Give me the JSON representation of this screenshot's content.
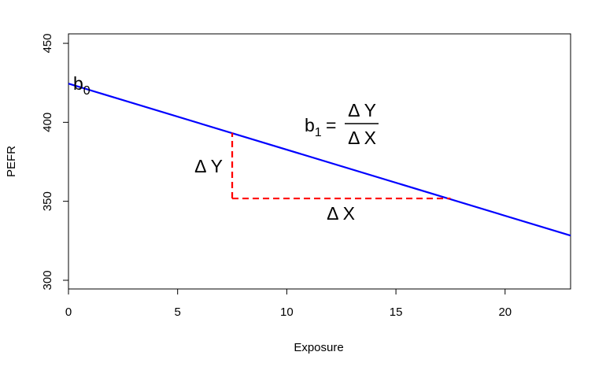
{
  "chart_data": {
    "type": "line",
    "xlabel": "Exposure",
    "ylabel": "PEFR",
    "xlim": [
      0,
      23
    ],
    "ylim": [
      294.5,
      456
    ],
    "x_ticks": [
      0,
      5,
      10,
      15,
      20
    ],
    "y_ticks": [
      300,
      350,
      400,
      450
    ],
    "grid": false,
    "legend": "none",
    "series": [
      {
        "x": [
          0,
          23
        ],
        "y": [
          424.5,
          328.3
        ],
        "color": "#0000ff"
      }
    ],
    "slope_guides": {
      "color": "#ff0000",
      "style": "dashed",
      "vertical": {
        "x": 7.5,
        "y": [
          351.8,
          393.4
        ]
      },
      "horizontal": {
        "y": 351.8,
        "x": [
          7.5,
          17.5
        ]
      }
    },
    "annotations": {
      "intercept": {
        "base": "b",
        "sub": "0"
      },
      "slope": {
        "base": "b",
        "sub": "1",
        "equals": "=",
        "numerator": "Δ Y",
        "denominator": "Δ X"
      },
      "delta_y": "Δ Y",
      "delta_x": "Δ X"
    }
  }
}
